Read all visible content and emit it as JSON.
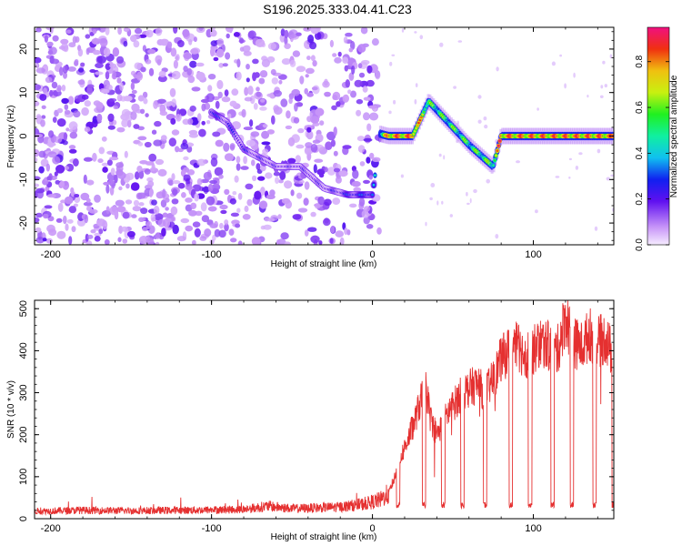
{
  "title": "S196.2025.333.04.41.C23",
  "chart_data": [
    {
      "type": "heatmap",
      "title": "S196.2025.333.04.41.C23",
      "xlabel": "Height of straight line (km)",
      "ylabel": "Frequency (Hz)",
      "xlim": [
        -210,
        150
      ],
      "ylim": [
        -25,
        25
      ],
      "xticks": [
        -200,
        -100,
        0,
        100
      ],
      "yticks": [
        20,
        10,
        0,
        -10,
        -20
      ],
      "xtick_labels": [
        "-200",
        "-100",
        "0",
        "100"
      ],
      "ytick_labels": [
        "20",
        "10",
        "0",
        "-10",
        "-20"
      ],
      "colorbar": {
        "label": "Normalized spectral amplitude",
        "range": [
          0,
          0.95
        ],
        "ticks": [
          0.0,
          0.2,
          0.4,
          0.6,
          0.8
        ],
        "tick_labels": [
          "0.0",
          "0.2",
          "0.4",
          "0.6",
          "0.8"
        ],
        "colormap": "rainbow"
      },
      "ridge": [
        {
          "x": -100,
          "f": 5.5,
          "amp": 0.3
        },
        {
          "x": -90,
          "f": 3,
          "amp": 0.25
        },
        {
          "x": -80,
          "f": -3,
          "amp": 0.25
        },
        {
          "x": -60,
          "f": -7,
          "amp": 0.2
        },
        {
          "x": -45,
          "f": -7,
          "amp": 0.2
        },
        {
          "x": -30,
          "f": -12,
          "amp": 0.2
        },
        {
          "x": -15,
          "f": -13.5,
          "amp": 0.3
        },
        {
          "x": 0,
          "f": -13.5,
          "amp": 0.35
        },
        {
          "x": 5,
          "f": 0.5,
          "amp": 0.55
        },
        {
          "x": 10,
          "f": 0,
          "amp": 0.9
        },
        {
          "x": 25,
          "f": 0,
          "amp": 0.9
        },
        {
          "x": 35,
          "f": 8,
          "amp": 0.6
        },
        {
          "x": 45,
          "f": 4,
          "amp": 0.6
        },
        {
          "x": 60,
          "f": -2,
          "amp": 0.6
        },
        {
          "x": 75,
          "f": -7,
          "amp": 0.65
        },
        {
          "x": 80,
          "f": 0,
          "amp": 0.9
        },
        {
          "x": 150,
          "f": 0,
          "amp": 0.9
        }
      ]
    },
    {
      "type": "line",
      "xlabel": "Height of straight line (km)",
      "ylabel": "SNR (10 * v/v)",
      "xlim": [
        -210,
        150
      ],
      "ylim": [
        0,
        520
      ],
      "xticks": [
        -200,
        -100,
        0,
        100
      ],
      "yticks": [
        0,
        100,
        200,
        300,
        400,
        500
      ],
      "xtick_labels": [
        "-200",
        "-100",
        "0",
        "100"
      ],
      "ytick_labels": [
        "0",
        "100",
        "200",
        "300",
        "400",
        "500"
      ],
      "color": "#e53030",
      "series": [
        {
          "name": "SNR",
          "x": [
            -210,
            -180,
            -150,
            -120,
            -100,
            -80,
            -65,
            -50,
            -40,
            -20,
            -5,
            0,
            5,
            10,
            14,
            18,
            22,
            26,
            30,
            33,
            36,
            40,
            44,
            48,
            52,
            56,
            60,
            65,
            70,
            75,
            80,
            85,
            90,
            95,
            100,
            105,
            110,
            115,
            120,
            125,
            130,
            135,
            140,
            145,
            150
          ],
          "y": [
            18,
            20,
            19,
            20,
            21,
            22,
            30,
            24,
            25,
            28,
            35,
            40,
            45,
            60,
            100,
            150,
            190,
            230,
            280,
            320,
            240,
            200,
            230,
            260,
            280,
            300,
            310,
            320,
            300,
            330,
            380,
            400,
            410,
            390,
            400,
            420,
            410,
            400,
            480,
            420,
            410,
            440,
            420,
            430,
            380
          ]
        }
      ],
      "dropouts": [
        16,
        32,
        44,
        56,
        70,
        86,
        98,
        112,
        124,
        138,
        150
      ],
      "dropout_value": 25
    }
  ]
}
